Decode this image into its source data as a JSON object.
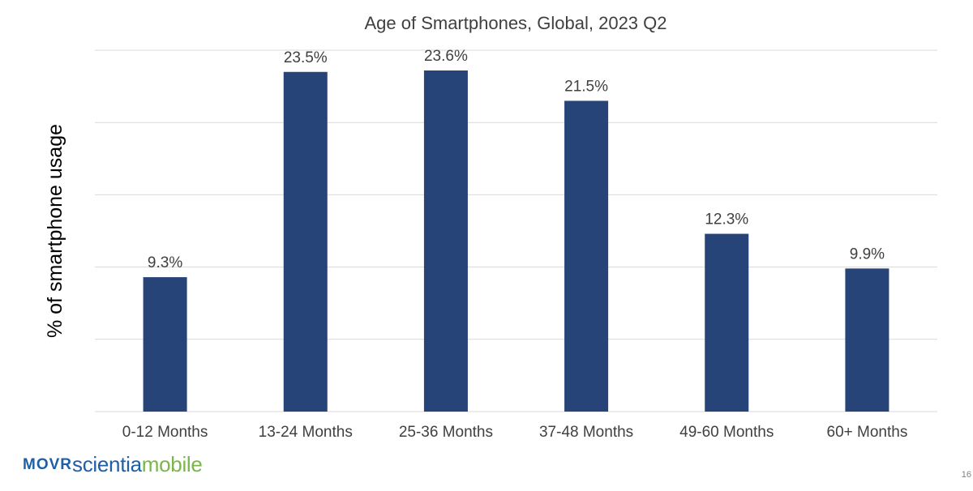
{
  "chart_data": {
    "type": "bar",
    "title": "Age of Smartphones, Global, 2023 Q2",
    "ylabel": "% of smartphone usage",
    "xlabel": "",
    "categories": [
      "0-12 Months",
      "13-24 Months",
      "25-36 Months",
      "37-48 Months",
      "49-60 Months",
      "60+ Months"
    ],
    "values": [
      9.3,
      23.5,
      23.6,
      21.5,
      12.3,
      9.9
    ],
    "data_labels": [
      "9.3%",
      "23.5%",
      "23.6%",
      "21.5%",
      "12.3%",
      "9.9%"
    ],
    "ylim": [
      0,
      25
    ],
    "ytick_step": 5,
    "grid": true,
    "legend": "none",
    "bar_color": "#264478",
    "grid_color": "#d9d9d9"
  },
  "branding": {
    "logo_movr": "MOVR",
    "logo_scientia": "scientia",
    "logo_mobile": "mobile",
    "movr_color": "#1f5fa6",
    "scientia_color": "#1f5fa6",
    "mobile_color": "#7ab648"
  },
  "footer": {
    "page_number": "16"
  }
}
